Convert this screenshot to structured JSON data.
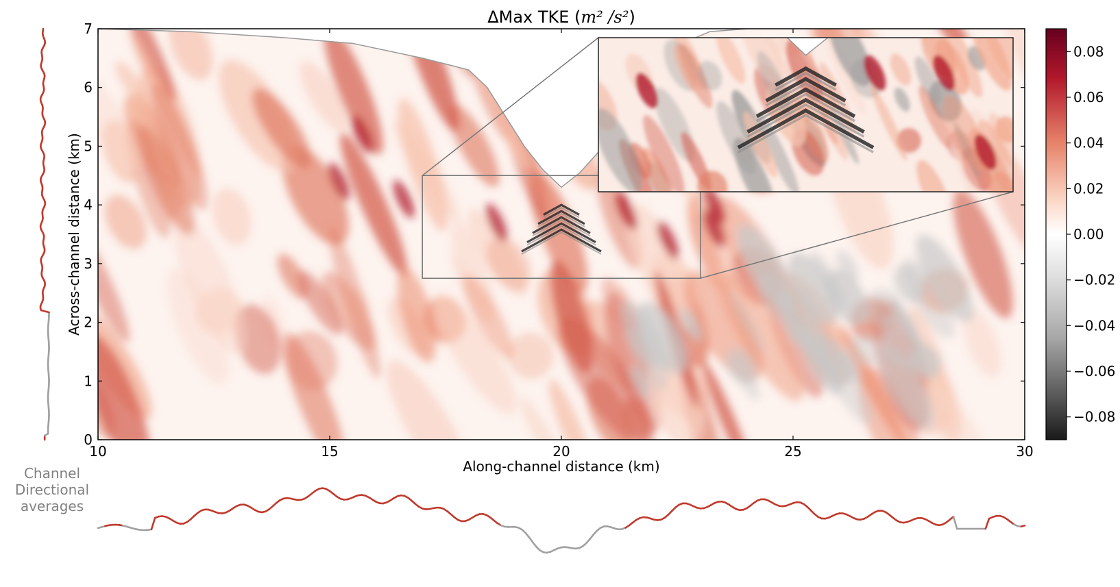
{
  "chart_data": {
    "type": "heatmap",
    "title": "ΔMax TKE (",
    "title_units": "m² /s²",
    "title_close": ")",
    "xlabel": "Along-channel distance (km)",
    "ylabel": "Across-channel distance (km)",
    "xlim": [
      10,
      30
    ],
    "ylim": [
      0,
      7
    ],
    "xticks": [
      "10",
      "15",
      "20",
      "25",
      "30"
    ],
    "yticks": [
      "0",
      "1",
      "2",
      "3",
      "4",
      "5",
      "6",
      "7"
    ],
    "colorbar": {
      "range": [
        -0.09,
        0.09
      ],
      "ticks": [
        "0.08",
        "0.06",
        "0.04",
        "0.02",
        "0.00",
        "−0.02",
        "−0.04",
        "−0.06",
        "−0.08"
      ],
      "tick_values": [
        0.08,
        0.06,
        0.04,
        0.02,
        0.0,
        -0.02,
        -0.04,
        -0.06,
        -0.08
      ],
      "colormap": "diverging red (positive) / white / grey-black (negative)"
    },
    "inset": {
      "x_range": [
        17,
        23
      ],
      "y_range": [
        2.75,
        4.5
      ],
      "magnified": true
    },
    "coastline": [
      [
        10,
        7
      ],
      [
        12,
        6.95
      ],
      [
        14,
        6.85
      ],
      [
        15.5,
        6.75
      ],
      [
        17,
        6.5
      ],
      [
        18,
        6.3
      ],
      [
        18.4,
        6
      ],
      [
        18.8,
        5.5
      ],
      [
        19.2,
        5
      ],
      [
        19.6,
        4.6
      ],
      [
        20,
        4.3
      ],
      [
        20.4,
        4.55
      ],
      [
        20.8,
        4.9
      ],
      [
        21.3,
        5.5
      ],
      [
        22,
        6.3
      ],
      [
        22.6,
        6.75
      ],
      [
        23.2,
        6.95
      ],
      [
        24,
        7
      ]
    ],
    "averages_label": [
      "Channel",
      "Directional",
      "averages"
    ],
    "positive_color": "#c0392b",
    "negative_color": "#a0a0a0",
    "zero_color": "#ffffff"
  }
}
